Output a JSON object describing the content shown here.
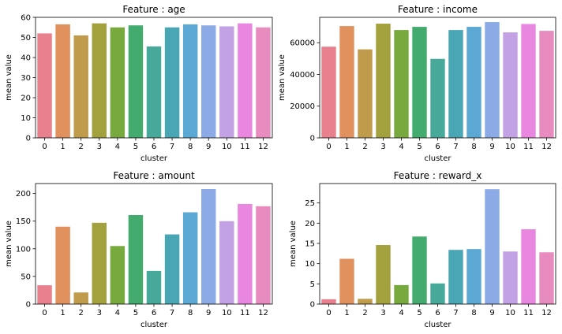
{
  "palette": [
    "#e8818d",
    "#e0915e",
    "#c09b4b",
    "#a3a13d",
    "#77a93e",
    "#44ab6e",
    "#46a99a",
    "#49a6b5",
    "#5aa8d3",
    "#8cabe6",
    "#c2a1e5",
    "#e886e0",
    "#e88cbf"
  ],
  "chart_data": [
    {
      "type": "bar",
      "title": "Feature : age",
      "xlabel": "cluster",
      "ylabel": "mean value",
      "categories": [
        "0",
        "1",
        "2",
        "3",
        "4",
        "5",
        "6",
        "7",
        "8",
        "9",
        "10",
        "11",
        "12"
      ],
      "values": [
        52,
        56.5,
        51,
        57,
        55,
        56,
        45.5,
        55,
        56.5,
        56,
        55.5,
        57,
        55
      ],
      "ylim": [
        0,
        60
      ],
      "yticks": [
        0,
        10,
        20,
        30,
        40,
        50,
        60
      ],
      "ytick_labels": [
        "0",
        "10",
        "20",
        "30",
        "40",
        "50",
        "60"
      ],
      "grid": false
    },
    {
      "type": "bar",
      "title": "Feature : income",
      "xlabel": "cluster",
      "ylabel": "mean value",
      "categories": [
        "0",
        "1",
        "2",
        "3",
        "4",
        "5",
        "6",
        "7",
        "8",
        "9",
        "10",
        "11",
        "12"
      ],
      "values": [
        57500,
        70500,
        55800,
        72000,
        68000,
        70000,
        49800,
        68000,
        70000,
        73000,
        66500,
        71800,
        67500
      ],
      "ylim": [
        0,
        76000
      ],
      "yticks": [
        0,
        20000,
        40000,
        60000
      ],
      "ytick_labels": [
        "0",
        "20000",
        "40000",
        "60000"
      ],
      "grid": false
    },
    {
      "type": "bar",
      "title": "Feature : amount",
      "xlabel": "cluster",
      "ylabel": "mean value",
      "categories": [
        "0",
        "1",
        "2",
        "3",
        "4",
        "5",
        "6",
        "7",
        "8",
        "9",
        "10",
        "11",
        "12"
      ],
      "values": [
        34,
        140,
        21,
        147,
        105,
        161,
        60,
        126,
        166,
        208,
        150,
        181,
        177
      ],
      "ylim": [
        0,
        218
      ],
      "yticks": [
        0,
        50,
        100,
        150,
        200
      ],
      "ytick_labels": [
        "0",
        "50",
        "100",
        "150",
        "200"
      ],
      "grid": false
    },
    {
      "type": "bar",
      "title": "Feature : reward_x",
      "xlabel": "cluster",
      "ylabel": "mean value",
      "categories": [
        "0",
        "1",
        "2",
        "3",
        "4",
        "5",
        "6",
        "7",
        "8",
        "9",
        "10",
        "11",
        "12"
      ],
      "values": [
        1.2,
        11.2,
        1.3,
        14.6,
        4.7,
        16.7,
        5.1,
        13.4,
        13.6,
        28.4,
        13.0,
        18.5,
        12.8
      ],
      "ylim": [
        0,
        29.8
      ],
      "yticks": [
        0,
        5,
        10,
        15,
        20,
        25
      ],
      "ytick_labels": [
        "0",
        "5",
        "10",
        "15",
        "20",
        "25"
      ],
      "grid": false
    }
  ]
}
